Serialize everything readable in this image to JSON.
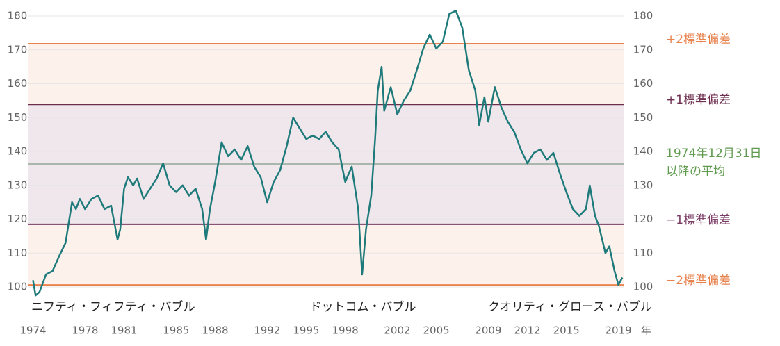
{
  "chart_data": {
    "type": "line",
    "x": [
      1974.0,
      1974.2,
      1974.5,
      1975,
      1975.5,
      1976,
      1976.5,
      1977,
      1977.3,
      1977.6,
      1978,
      1978.5,
      1979,
      1979.5,
      1980,
      1980.5,
      1980.7,
      1981,
      1981.3,
      1981.7,
      1982,
      1982.5,
      1983,
      1983.5,
      1984,
      1984.5,
      1985,
      1985.5,
      1986,
      1986.5,
      1987,
      1987.3,
      1987.6,
      1988,
      1988.5,
      1989,
      1989.5,
      1990,
      1990.5,
      1991,
      1991.5,
      1992,
      1992.5,
      1993,
      1993.5,
      1994,
      1994.5,
      1995,
      1995.5,
      1996,
      1996.5,
      1997,
      1997.5,
      1998,
      1998.5,
      1999,
      1999.3,
      1999.6,
      2000,
      2000.3,
      2000.5,
      2000.8,
      2001,
      2001.5,
      2002,
      2002.5,
      2003,
      2003.5,
      2004,
      2004.5,
      2005,
      2005.5,
      2006,
      2006.5,
      2007,
      2007.5,
      2008,
      2008.3,
      2008.7,
      2009,
      2009.5,
      2010,
      2010.5,
      2011,
      2011.5,
      2012,
      2012.5,
      2013,
      2013.5,
      2014,
      2014.5,
      2015,
      2015.5,
      2016,
      2016.5,
      2016.8,
      2017.2,
      2017.5,
      2018,
      2018.3,
      2018.7,
      2019,
      2019.3
    ],
    "series": [
      {
        "color": "#1f7b7b",
        "values": [
          102,
          97.5,
          98.5,
          103.7,
          104.7,
          109,
          113,
          125,
          123,
          126,
          123,
          126,
          127,
          123,
          124,
          114,
          117,
          129,
          132.4,
          130,
          132,
          126,
          129,
          132,
          136.5,
          130,
          128,
          130,
          127,
          129,
          123,
          114,
          123,
          131,
          142.7,
          138.6,
          140.6,
          137.5,
          141.6,
          135.5,
          132.4,
          125,
          131,
          134.5,
          141.6,
          150,
          146.8,
          143.7,
          144.7,
          143.7,
          145.8,
          142.7,
          140.6,
          131,
          135.5,
          123,
          103.7,
          117,
          127,
          143.7,
          158,
          165,
          152,
          159,
          151,
          155,
          158,
          164,
          170.4,
          174.5,
          170.4,
          172.4,
          180.6,
          181.6,
          176.5,
          164,
          158,
          147.8,
          156,
          148.8,
          159,
          153,
          148.8,
          145.7,
          140.6,
          136.5,
          139.6,
          140.6,
          137.5,
          139.6,
          133.5,
          128,
          123,
          121,
          123,
          130,
          121,
          118,
          110,
          112,
          104.7,
          100.6,
          102.8
        ]
      }
    ],
    "xlim": [
      1973.6,
      2019.45
    ],
    "xticks": [
      1974,
      1978,
      1981,
      1985,
      1988,
      1992,
      1995,
      1998,
      2002,
      2005,
      2009,
      2012,
      2015,
      2019
    ],
    "x_unit": "年",
    "ylim": [
      96,
      182
    ],
    "yticks": [
      100,
      110,
      120,
      130,
      140,
      150,
      160,
      170,
      180
    ],
    "grid": true,
    "reference_lines": [
      {
        "label_lines": [
          "+2標準偏差"
        ],
        "value": 171.8,
        "color": "#e8834e"
      },
      {
        "label_lines": [
          "+1標準偏差"
        ],
        "value": 153.9,
        "color": "#6e2f4f"
      },
      {
        "label_lines": [
          "1974年12月31日",
          "以降の平均"
        ],
        "value": 136.3,
        "color": "#a9b7ad",
        "label_color": "#5f9a4f"
      },
      {
        "label_lines": [
          "−1標準偏差"
        ],
        "value": 118.5,
        "color": "#7a3b63"
      },
      {
        "label_lines": [
          "−2標準偏差"
        ],
        "value": 100.6,
        "color": "#e8834e"
      }
    ],
    "annotations": [
      "ニフティ・フィフティ・バブル",
      "ドットコム・バブル",
      "クオリティ・グロース・バブル"
    ]
  }
}
